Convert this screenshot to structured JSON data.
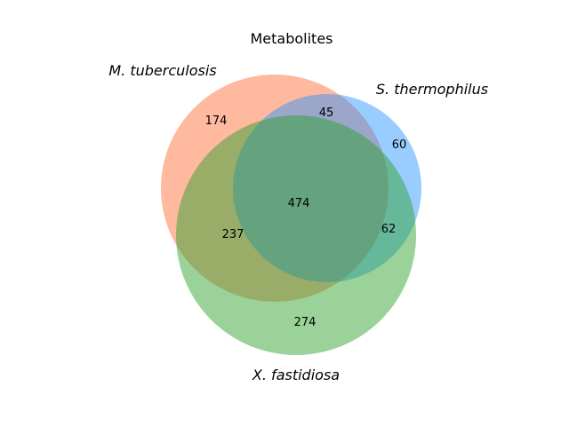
{
  "diagram": {
    "type": "venn3",
    "title": "Metabolites",
    "sets": [
      {
        "key": "A",
        "name": "M. tuberculosis",
        "color": "#ff7f50"
      },
      {
        "key": "B",
        "name": "S. thermophilus",
        "color": "#1e90ff"
      },
      {
        "key": "C",
        "name": "X. fastidiosa",
        "color": "#2ca02c"
      }
    ],
    "regions": {
      "A_only": "174",
      "AB_only": "45",
      "B_only": "60",
      "ABC": "474",
      "AC_only": "237",
      "BC_only": "62",
      "C_only": "274"
    }
  }
}
